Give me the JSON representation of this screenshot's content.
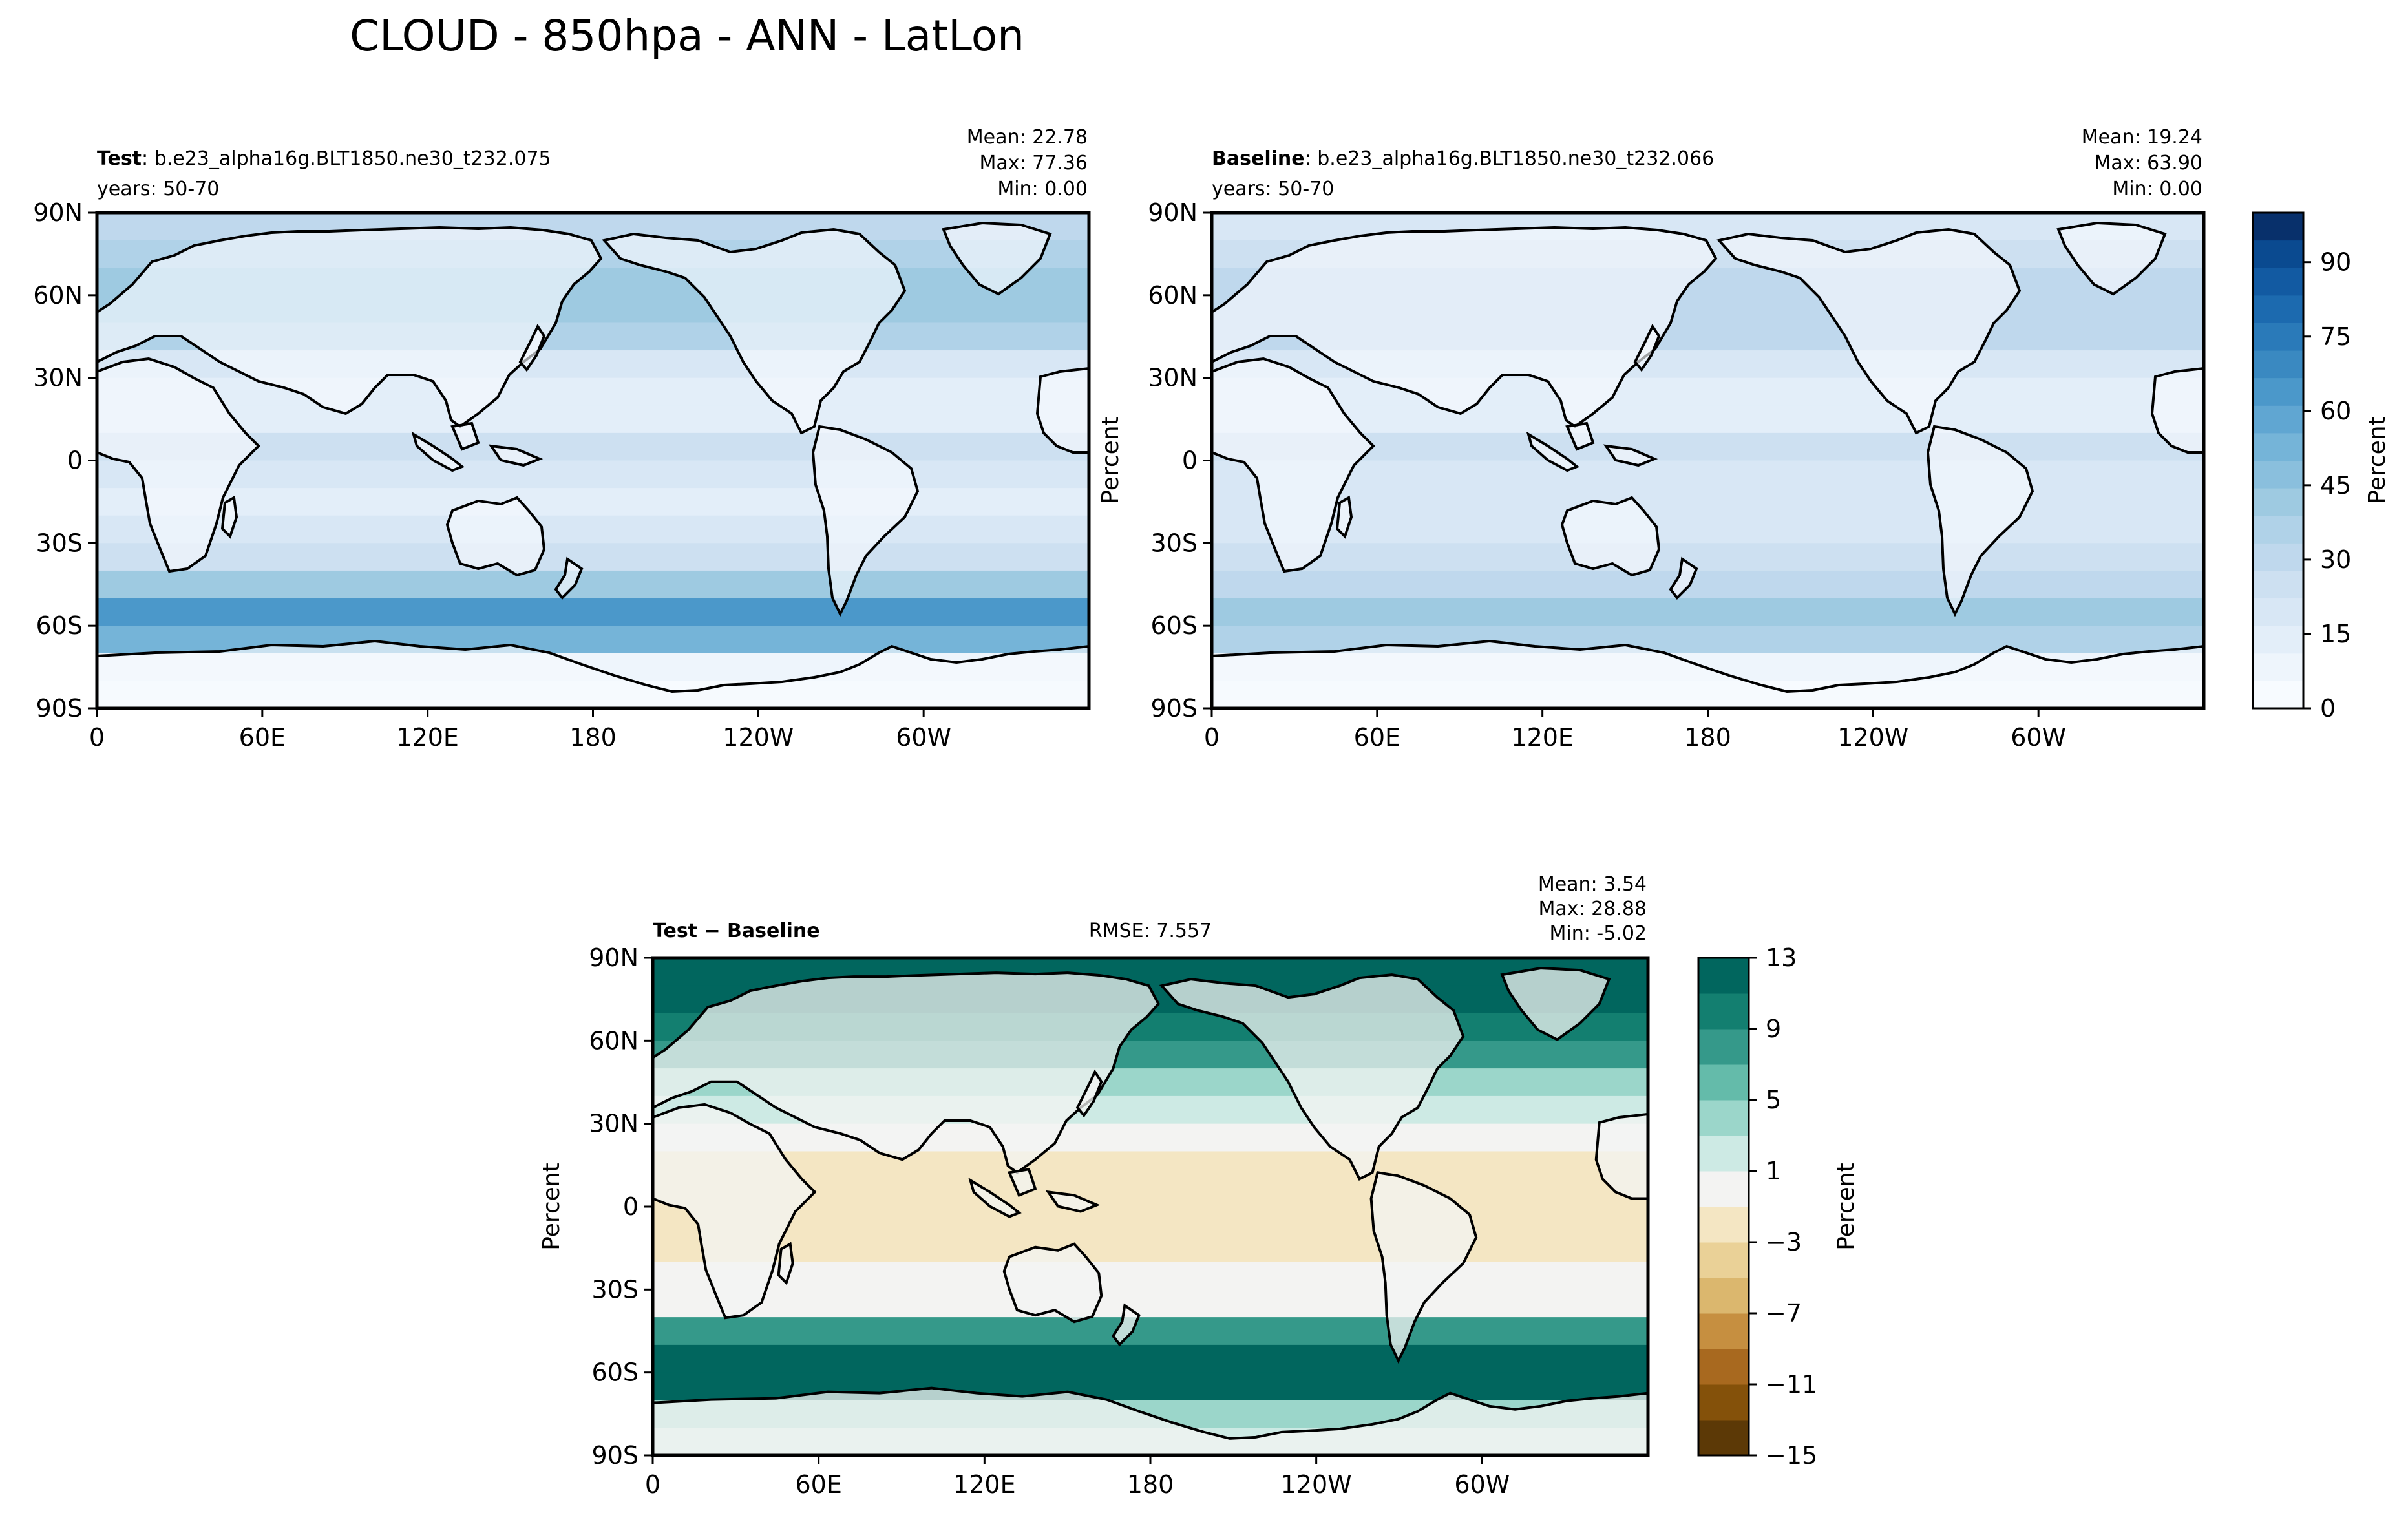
{
  "figure": {
    "title": "CLOUD - 850hpa - ANN - LatLon"
  },
  "panels": [
    {
      "id": "test",
      "label_bold": "Test",
      "label_rest": ": b.e23_alpha16g.BLT1850.ne30_t232.075",
      "years": "years: 50-70",
      "stats": [
        "Mean: 22.78",
        "Max: 77.36",
        "Min:  0.00"
      ],
      "ylabel": ""
    },
    {
      "id": "baseline",
      "label_bold": "Baseline",
      "label_rest": ": b.e23_alpha16g.BLT1850.ne30_t232.066",
      "years": "years: 50-70",
      "stats": [
        "Mean: 19.24",
        "Max: 63.90",
        "Min:  0.00"
      ],
      "ylabel": "Percent"
    },
    {
      "id": "diff",
      "label_bold": "Test − Baseline",
      "label_rest": "",
      "rmse": "RMSE: 7.557",
      "stats": [
        "Mean:  3.54",
        "Max: 28.88",
        "Min: -5.02"
      ],
      "ylabel": "Percent"
    }
  ],
  "colorbars": [
    {
      "id": "abs",
      "label": "Percent",
      "ticks": [
        "0",
        "15",
        "30",
        "45",
        "60",
        "75",
        "90"
      ],
      "tick_values": [
        0,
        15,
        30,
        45,
        60,
        75,
        90
      ],
      "range": [
        0,
        100
      ],
      "colors": [
        "#f7fbff",
        "#eef5fc",
        "#e3eef9",
        "#d8e7f5",
        "#cde0f1",
        "#bfd8ed",
        "#b0d2e8",
        "#9ecae1",
        "#8abfdd",
        "#75b4d8",
        "#60a6d2",
        "#4b98ca",
        "#3a89c1",
        "#2a7ab9",
        "#1c6aaf",
        "#125aa2",
        "#0a4a90",
        "#08306b"
      ]
    },
    {
      "id": "diff",
      "label": "Percent",
      "ticks": [
        "13",
        "9",
        "5",
        "1",
        "−3",
        "−7",
        "−11",
        "−15"
      ],
      "tick_values": [
        13,
        9,
        5,
        1,
        -3,
        -7,
        -11,
        -15
      ],
      "levels": [
        -15,
        -13,
        -11,
        -9,
        -7,
        -5,
        -3,
        -1,
        1,
        3,
        5,
        7,
        9,
        11,
        13
      ],
      "colors": [
        "#5c3906",
        "#84510a",
        "#a8691f",
        "#c68f40",
        "#dbb76e",
        "#ead197",
        "#f4e6c3",
        "#f3f3f2",
        "#cdeae4",
        "#9bd6ca",
        "#64bbaa",
        "#35998a",
        "#137f70",
        "#01665e"
      ]
    }
  ],
  "chart_data": [
    {
      "type": "heatmap",
      "panel": "Test",
      "title": "Test: b.e23_alpha16g.BLT1850.ne30_t232.075",
      "xlabel": "",
      "ylabel": "",
      "x_ticks": [
        "0",
        "60E",
        "120E",
        "180",
        "120W",
        "60W"
      ],
      "x_tick_values": [
        0,
        60,
        120,
        180,
        240,
        300
      ],
      "x_range": [
        0,
        360
      ],
      "y_ticks": [
        "90N",
        "60N",
        "30N",
        "0",
        "30S",
        "60S",
        "90S"
      ],
      "y_tick_values": [
        90,
        60,
        30,
        0,
        -30,
        -60,
        -90
      ],
      "y_range": [
        -90,
        90
      ],
      "mean": 22.78,
      "max": 77.36,
      "min": 0.0,
      "zonal_profile": [
        {
          "lat": 85,
          "value": 28
        },
        {
          "lat": 75,
          "value": 35
        },
        {
          "lat": 65,
          "value": 40
        },
        {
          "lat": 55,
          "value": 42
        },
        {
          "lat": 45,
          "value": 38
        },
        {
          "lat": 35,
          "value": 20
        },
        {
          "lat": 25,
          "value": 14
        },
        {
          "lat": 15,
          "value": 15
        },
        {
          "lat": 5,
          "value": 24
        },
        {
          "lat": -5,
          "value": 18
        },
        {
          "lat": -15,
          "value": 16
        },
        {
          "lat": -25,
          "value": 18
        },
        {
          "lat": -35,
          "value": 24
        },
        {
          "lat": -45,
          "value": 40
        },
        {
          "lat": -55,
          "value": 62
        },
        {
          "lat": -65,
          "value": 52
        },
        {
          "lat": -75,
          "value": 10
        },
        {
          "lat": -85,
          "value": 3
        }
      ]
    },
    {
      "type": "heatmap",
      "panel": "Baseline",
      "title": "Baseline: b.e23_alpha16g.BLT1850.ne30_t232.066",
      "xlabel": "",
      "ylabel": "Percent",
      "x_ticks": [
        "0",
        "60E",
        "120E",
        "180",
        "120W",
        "60W"
      ],
      "x_tick_values": [
        0,
        60,
        120,
        180,
        240,
        300
      ],
      "x_range": [
        0,
        360
      ],
      "y_ticks": [
        "90N",
        "60N",
        "30N",
        "0",
        "30S",
        "60S",
        "90S"
      ],
      "y_tick_values": [
        90,
        60,
        30,
        0,
        -30,
        -60,
        -90
      ],
      "y_range": [
        -90,
        90
      ],
      "mean": 19.24,
      "max": 63.9,
      "min": 0.0,
      "zonal_profile": [
        {
          "lat": 85,
          "value": 20
        },
        {
          "lat": 75,
          "value": 25
        },
        {
          "lat": 65,
          "value": 28
        },
        {
          "lat": 55,
          "value": 33
        },
        {
          "lat": 45,
          "value": 32
        },
        {
          "lat": 35,
          "value": 18
        },
        {
          "lat": 25,
          "value": 14
        },
        {
          "lat": 15,
          "value": 16
        },
        {
          "lat": 5,
          "value": 26
        },
        {
          "lat": -5,
          "value": 20
        },
        {
          "lat": -15,
          "value": 17
        },
        {
          "lat": -25,
          "value": 19
        },
        {
          "lat": -35,
          "value": 24
        },
        {
          "lat": -45,
          "value": 30
        },
        {
          "lat": -55,
          "value": 42
        },
        {
          "lat": -65,
          "value": 35
        },
        {
          "lat": -75,
          "value": 8
        },
        {
          "lat": -85,
          "value": 2
        }
      ]
    },
    {
      "type": "heatmap",
      "panel": "Test − Baseline",
      "title": "Test − Baseline",
      "xlabel": "",
      "ylabel": "Percent",
      "x_ticks": [
        "0",
        "60E",
        "120E",
        "180",
        "120W",
        "60W"
      ],
      "x_tick_values": [
        0,
        60,
        120,
        180,
        240,
        300
      ],
      "x_range": [
        0,
        360
      ],
      "y_ticks": [
        "90N",
        "60N",
        "30N",
        "0",
        "30S",
        "60S",
        "90S"
      ],
      "y_tick_values": [
        90,
        60,
        30,
        0,
        -30,
        -60,
        -90
      ],
      "y_range": [
        -90,
        90
      ],
      "mean": 3.54,
      "max": 28.88,
      "min": -5.02,
      "rmse": 7.557,
      "zonal_profile": [
        {
          "lat": 85,
          "value": 16
        },
        {
          "lat": 75,
          "value": 14
        },
        {
          "lat": 65,
          "value": 10
        },
        {
          "lat": 55,
          "value": 8
        },
        {
          "lat": 45,
          "value": 4
        },
        {
          "lat": 35,
          "value": 1
        },
        {
          "lat": 25,
          "value": -1
        },
        {
          "lat": 15,
          "value": -2
        },
        {
          "lat": 5,
          "value": -2
        },
        {
          "lat": -5,
          "value": -2
        },
        {
          "lat": -15,
          "value": -1.5
        },
        {
          "lat": -25,
          "value": -1
        },
        {
          "lat": -35,
          "value": 0
        },
        {
          "lat": -45,
          "value": 8
        },
        {
          "lat": -55,
          "value": 18
        },
        {
          "lat": -65,
          "value": 16
        },
        {
          "lat": -75,
          "value": 4
        },
        {
          "lat": -85,
          "value": 1
        }
      ]
    }
  ]
}
